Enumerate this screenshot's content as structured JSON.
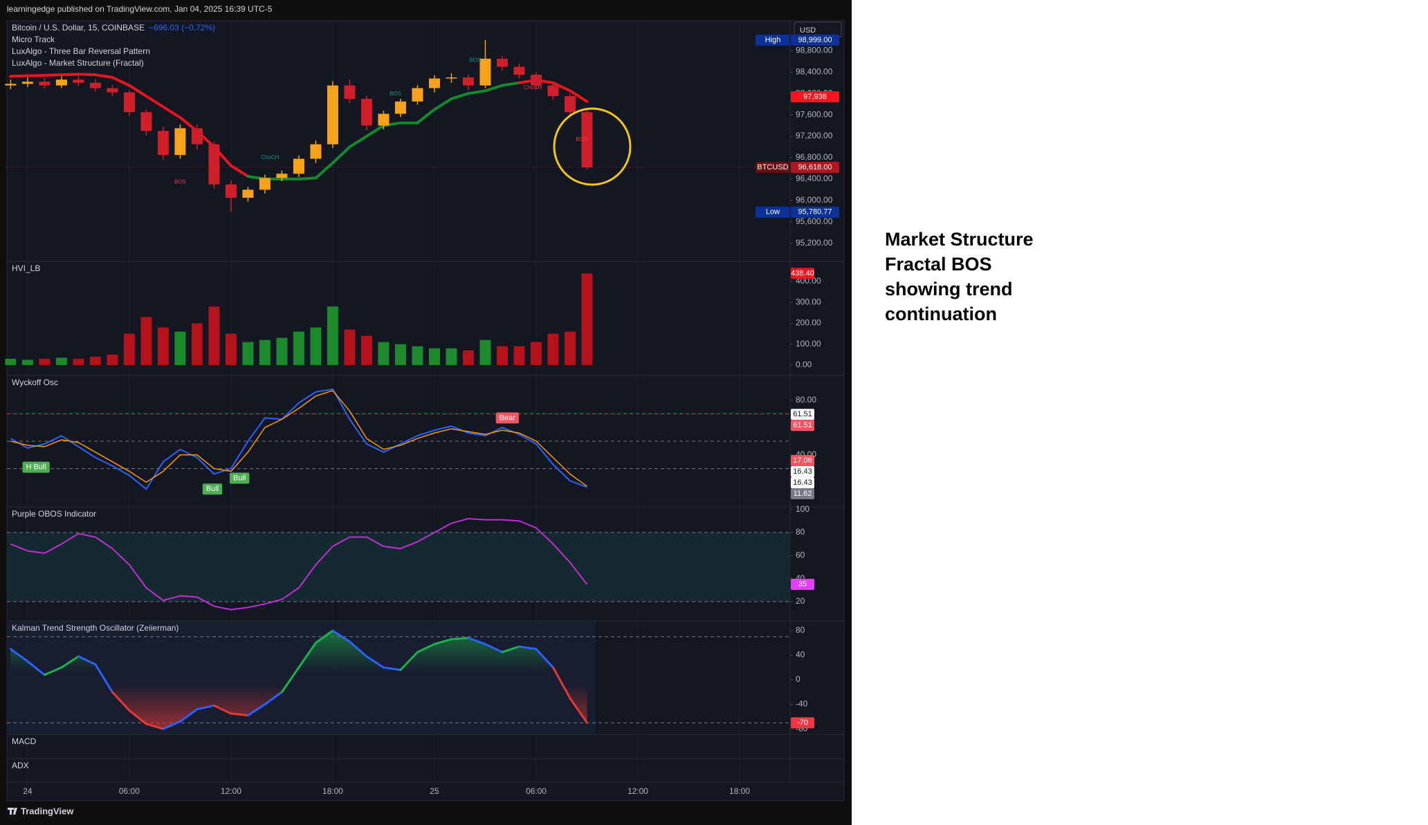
{
  "header": "learningedge published on TradingView.com, Jan 04, 2025 16:39 UTC-5",
  "footer": "TradingView",
  "currency": "USD",
  "note": [
    "Market Structure",
    "Fractal BOS",
    "showing trend",
    "continuation"
  ],
  "time": {
    "x": [
      -1,
      0,
      1,
      2,
      3,
      4,
      5,
      6,
      7,
      8,
      9,
      10,
      11,
      12,
      13,
      14,
      15,
      16,
      17,
      18,
      19,
      20,
      21,
      22,
      23,
      24,
      25,
      26,
      27,
      28,
      29,
      30,
      31,
      32,
      33
    ],
    "xlim": [
      -1.22,
      44.98
    ],
    "xticks": [
      {
        "value": 0,
        "label": "24"
      },
      {
        "value": 6,
        "label": "06:00"
      },
      {
        "value": 12,
        "label": "12:00"
      },
      {
        "value": 18,
        "label": "18:00"
      },
      {
        "value": 24,
        "label": "25"
      },
      {
        "value": 30,
        "label": "06:00"
      },
      {
        "value": 36,
        "label": "12:00"
      },
      {
        "value": 42,
        "label": "18:00"
      }
    ]
  },
  "chart_data": [
    {
      "type": "candlestick",
      "title": "Bitcoin / U.S. Dollar, 15, COINBASE",
      "change": "−696.03 (−0.72%)",
      "indicators": [
        "Micro Track",
        "LuxAlgo - Three Bar Reversal Pattern",
        "LuxAlgo - Market Structure (Fractal)"
      ],
      "open": [
        98150,
        98180,
        98220,
        98150,
        98260,
        98200,
        98100,
        98020,
        97650,
        97300,
        96850,
        97350,
        97050,
        96300,
        96050,
        96200,
        96420,
        96500,
        96780,
        97050,
        98150,
        97900,
        97400,
        97620,
        97850,
        98100,
        98280,
        98300,
        98150,
        98650,
        98500,
        98350,
        98150,
        97950,
        97650
      ],
      "high": [
        98260,
        98300,
        98290,
        98320,
        98330,
        98270,
        98160,
        98060,
        97700,
        97380,
        97420,
        97420,
        97100,
        96380,
        96250,
        96480,
        96560,
        96840,
        97120,
        98230,
        98260,
        97960,
        97680,
        97900,
        98160,
        98340,
        98380,
        98350,
        98999,
        98700,
        98560,
        98400,
        98200,
        97990,
        97700
      ],
      "low": [
        98080,
        98120,
        98090,
        98100,
        98140,
        98040,
        97950,
        97580,
        97220,
        96760,
        96780,
        96950,
        96220,
        95780.77,
        95980,
        96130,
        96360,
        96440,
        96700,
        96980,
        97820,
        97310,
        97330,
        97560,
        97790,
        98020,
        98200,
        98060,
        98100,
        98420,
        98280,
        98080,
        97880,
        97580,
        96580
      ],
      "close": [
        98180,
        98220,
        98150,
        98260,
        98200,
        98100,
        98020,
        97650,
        97300,
        96850,
        97350,
        97050,
        96300,
        96050,
        96200,
        96420,
        96500,
        96780,
        97050,
        98150,
        97900,
        97400,
        97620,
        97850,
        98100,
        98280,
        98300,
        98150,
        98650,
        98500,
        98350,
        98150,
        97950,
        97650,
        96618
      ],
      "up_color": "#f7a21b",
      "down_color": "#d01f2a",
      "trail": {
        "values": [
          98320,
          98330,
          98340,
          98350,
          98360,
          98350,
          98300,
          98150,
          97950,
          97750,
          97550,
          97300,
          97000,
          96650,
          96450,
          96400,
          96400,
          96400,
          96420,
          96700,
          97000,
          97200,
          97400,
          97450,
          97450,
          97700,
          97900,
          98000,
          98050,
          98150,
          98200,
          98250,
          98200,
          98050,
          97850
        ],
        "up_color": "#138a2c",
        "down_color": "#e8141e"
      },
      "annotations": [
        {
          "text": "BOS",
          "x": 9.0,
          "y": 96340,
          "color": "#f23645"
        },
        {
          "text": "ChoCH",
          "x": 14.3,
          "y": 96800,
          "color": "#089981"
        },
        {
          "text": "BOS",
          "x": 21.7,
          "y": 97990,
          "color": "#089981"
        },
        {
          "text": "BOS",
          "x": 26.4,
          "y": 98620,
          "color": "#089981"
        },
        {
          "text": "ChoCH",
          "x": 29.8,
          "y": 98110,
          "color": "#f23645"
        },
        {
          "text": "BOS",
          "x": 32.7,
          "y": 97140,
          "color": "#f23645"
        }
      ],
      "ylim": [
        94860,
        99360
      ],
      "yticks": [
        {
          "value": 95200,
          "label": "95,200.00"
        },
        {
          "value": 95600,
          "label": "95,600.00"
        },
        {
          "value": 96000,
          "label": "96,000.00"
        },
        {
          "value": 96400,
          "label": "96,400.00"
        },
        {
          "value": 96800,
          "label": "96,800.00"
        },
        {
          "value": 97200,
          "label": "97,200.00"
        },
        {
          "value": 97600,
          "label": "97,600.00"
        },
        {
          "value": 98000,
          "label": "98,000.00"
        },
        {
          "value": 98400,
          "label": "98,400.00"
        },
        {
          "value": 98800,
          "label": "98,800.00"
        }
      ],
      "tags": [
        {
          "name": "High",
          "value": 98999,
          "label": "98,999.00",
          "color": "#0c3299",
          "name_color": "#0c3299"
        },
        {
          "value": 97938,
          "label": "97,938",
          "color": "#f7141e"
        },
        {
          "name": "BTCUSD",
          "value": 96618,
          "label": "96,618.00",
          "color": "#b2161d",
          "name_color": "#6b0d10"
        },
        {
          "name": "Low",
          "value": 95780.77,
          "label": "95,780.77",
          "color": "#0c3299",
          "name_color": "#0c3299"
        }
      ]
    },
    {
      "type": "bar",
      "title": "HVI_LB",
      "values": [
        30,
        25,
        30,
        35,
        30,
        40,
        50,
        150,
        230,
        180,
        160,
        200,
        280,
        150,
        110,
        120,
        130,
        160,
        180,
        280,
        170,
        140,
        110,
        100,
        90,
        80,
        80,
        70,
        120,
        90,
        90,
        110,
        150,
        160,
        438.4
      ],
      "up_color": "#1e8a2e",
      "down_color": "#b5121b",
      "ylim": [
        -50,
        496
      ],
      "yticks": [
        {
          "value": 0,
          "label": "0.00"
        },
        {
          "value": 100,
          "label": "100.00"
        },
        {
          "value": 200,
          "label": "200.00"
        },
        {
          "value": 300,
          "label": "300.00"
        },
        {
          "value": 400,
          "label": "400.00"
        }
      ],
      "tags": [
        {
          "value": 438.4,
          "label": "438.40",
          "color": "#f7141e"
        }
      ]
    },
    {
      "type": "line",
      "title": "Wyckoff Osc",
      "series": [
        {
          "color": "#2962ff",
          "values": [
            52,
            45,
            48,
            54,
            46,
            38,
            32,
            25,
            15,
            35,
            44,
            38,
            26,
            30,
            50,
            67,
            66,
            78,
            86,
            88,
            66,
            48,
            42,
            48,
            54,
            58,
            61,
            56,
            54,
            60,
            55,
            48,
            33,
            21,
            16.43
          ]
        },
        {
          "color": "#ff9800",
          "values": [
            50,
            47,
            46,
            51,
            49,
            42,
            35,
            28,
            20,
            28,
            40,
            40,
            30,
            28,
            42,
            60,
            66,
            74,
            83,
            87,
            72,
            52,
            44,
            47,
            52,
            56,
            59,
            57,
            55,
            58,
            56,
            50,
            38,
            26,
            17.06
          ]
        }
      ],
      "levels": [
        70,
        50,
        30
      ],
      "level_colors": [
        "#f23645",
        "#787b86",
        "#787b86"
      ],
      "signals": [
        {
          "text": "H Bull",
          "x": 0.5,
          "y": 31,
          "color": "#4caf50"
        },
        {
          "text": "Bull",
          "x": 10.9,
          "y": 15,
          "color": "#4caf50"
        },
        {
          "text": "Bull",
          "x": 12.5,
          "y": 23,
          "color": "#4caf50"
        },
        {
          "text": "Bear",
          "x": 28.3,
          "y": 67,
          "color": "#f7525f"
        }
      ],
      "ylim": [
        2,
        98
      ],
      "yticks": [
        {
          "value": 40,
          "label": "40.00"
        },
        {
          "value": 80,
          "label": "80.00"
        }
      ],
      "tags": [
        {
          "value": 61.51,
          "color": "#ffffff",
          "text_color": "#131722"
        },
        {
          "value": 61.51,
          "color": "#f7525f"
        },
        {
          "value": 17.06,
          "color": "#f7525f"
        },
        {
          "value": 16.43,
          "color": "#ffffff",
          "text_color": "#131722"
        },
        {
          "value": 16.43,
          "color": "#ffffff",
          "text_color": "#131722"
        },
        {
          "value": 11.62,
          "color": "#787b86"
        }
      ]
    },
    {
      "type": "line",
      "title": "Purple OBOS Indicator",
      "series": [
        {
          "color": "#c22ed6",
          "values": [
            70,
            64,
            62,
            70,
            79,
            76,
            66,
            52,
            32,
            21,
            25,
            24,
            16,
            13,
            15,
            18,
            22,
            32,
            52,
            68,
            76,
            76,
            68,
            66,
            72,
            80,
            88,
            92,
            91,
            91,
            90,
            84,
            70,
            54,
            35
          ]
        }
      ],
      "levels": [
        80,
        20
      ],
      "level_colors": [
        "#787b86",
        "#787b86"
      ],
      "band_color": "#142a30",
      "ylim": [
        3.2,
        102.2
      ],
      "yticks": [
        20,
        40,
        60,
        80,
        100
      ],
      "tags": [
        {
          "value": 35,
          "color": "#e040fb"
        }
      ]
    },
    {
      "type": "line",
      "title": "Kalman Trend Strength Oscillator (Zeiierman)",
      "series": [
        {
          "color": "#2962ff",
          "values": [
            50,
            30,
            8,
            20,
            38,
            25,
            -20,
            -50,
            -72,
            -80,
            -68,
            -48,
            -42,
            -55,
            -58,
            -40,
            -20,
            20,
            60,
            80,
            62,
            38,
            20,
            16,
            45,
            58,
            66,
            68,
            58,
            45,
            54,
            50,
            20,
            -30,
            -70
          ]
        }
      ],
      "pos_color": "#1bb34a",
      "neg_color": "#e53935",
      "levels": [
        70,
        -70
      ],
      "level_colors": [
        "#787b86",
        "#787b86"
      ],
      "ylim": [
        -88.9,
        95.6
      ],
      "yticks": [
        -80,
        -40,
        0,
        40,
        80
      ],
      "tags": [
        {
          "value": -70,
          "color": "#f23645"
        }
      ]
    },
    {
      "type": "pane",
      "title": "MACD"
    },
    {
      "type": "pane",
      "title": "ADX"
    }
  ]
}
